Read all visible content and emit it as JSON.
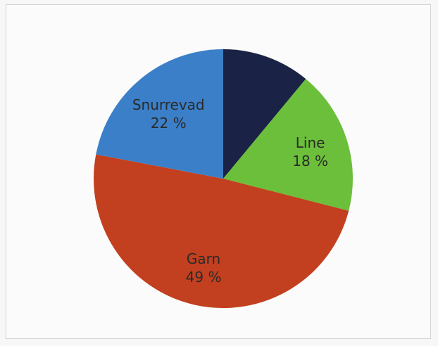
{
  "chart_data": {
    "type": "pie",
    "title": "",
    "slices": [
      {
        "label": "",
        "pct_text": "",
        "value": 11,
        "color": "#1a2345"
      },
      {
        "label": "Line",
        "pct_text": "18 %",
        "value": 18,
        "color": "#6cbf3a"
      },
      {
        "label": "Garn",
        "pct_text": "49 %",
        "value": 49,
        "color": "#c2401f"
      },
      {
        "label": "Snurrevad",
        "pct_text": "22 %",
        "value": 22,
        "color": "#3b7fc8"
      }
    ],
    "start_angle_deg": 0,
    "direction": "clockwise",
    "legend": "none",
    "label_placement": "inside"
  }
}
